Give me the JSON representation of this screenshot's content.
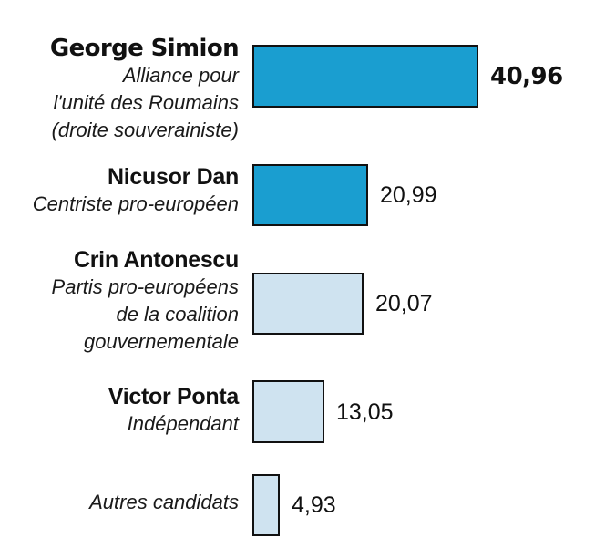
{
  "chart_data": {
    "type": "bar",
    "orientation": "horizontal",
    "title": "",
    "xlabel": "",
    "ylabel": "",
    "xlim": [
      0,
      41
    ],
    "grid": false,
    "legend": "none",
    "categories": [
      {
        "name": "George Simion",
        "subtitle_lines": [
          "Alliance pour",
          "l'unité des Roumains",
          "(droite souverainiste)"
        ]
      },
      {
        "name": "Nicusor Dan",
        "subtitle_lines": [
          "Centriste pro-européen"
        ]
      },
      {
        "name": "Crin Antonescu",
        "subtitle_lines": [
          "Partis pro-européens",
          "de la coalition",
          "gouvernementale"
        ]
      },
      {
        "name": "Victor Ponta",
        "subtitle_lines": [
          "Indépendant"
        ]
      },
      {
        "name": "",
        "subtitle_lines": [
          "Autres candidats"
        ]
      }
    ],
    "values": [
      40.96,
      20.99,
      20.07,
      13.05,
      4.93
    ],
    "value_labels": [
      "40,96",
      "20,99",
      "20,07",
      "13,05",
      "4,93"
    ],
    "highlight_index": 0,
    "colors": {
      "qualified": "#1a9ed0",
      "eliminated": "#cfe3f0",
      "outline": "#111111",
      "text": "#111111"
    },
    "bar_colors": [
      "qualified",
      "qualified",
      "eliminated",
      "eliminated",
      "eliminated"
    ]
  }
}
